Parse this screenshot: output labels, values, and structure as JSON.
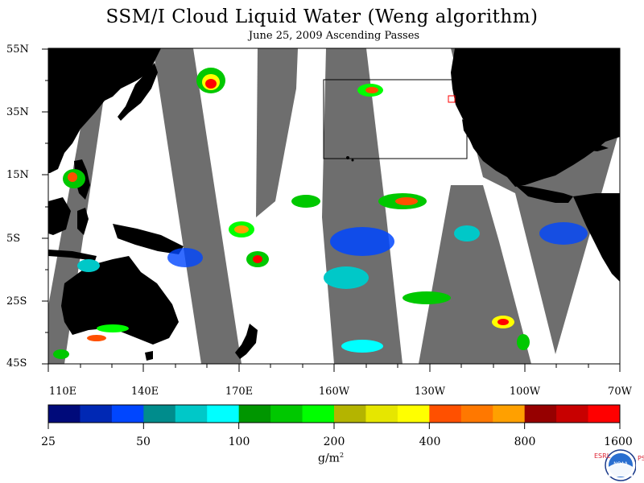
{
  "title": "SSM/I Cloud Liquid Water (Weng algorithm)",
  "subtitle": "June 25, 2009  Ascending Passes",
  "lat_labels": [
    "55N",
    "35N",
    "15N",
    "5S",
    "25S",
    "45S"
  ],
  "lon_labels": [
    "110E",
    "140E",
    "170E",
    "160W",
    "130W",
    "100W",
    "70W"
  ],
  "colorbar": {
    "tick_labels": [
      "25",
      "50",
      "100",
      "200",
      "400",
      "800",
      "1600"
    ],
    "units": "g/m",
    "units_exp": "2",
    "colors": [
      "#000a7a",
      "#0028b4",
      "#0046ff",
      "#008c8c",
      "#00c8c8",
      "#00ffff",
      "#009600",
      "#00c800",
      "#00ff00",
      "#b4b400",
      "#e6e600",
      "#ffff00",
      "#ff5000",
      "#ff7800",
      "#ffa000",
      "#960000",
      "#c80000",
      "#ff0000"
    ]
  },
  "logo": {
    "text": "NOAA",
    "left_letters": "ESRL",
    "right_letters": "PSD"
  },
  "colors": {
    "land": "#000000",
    "no_data": "#6e6e6e",
    "ocean_clear": "#ffffff"
  }
}
